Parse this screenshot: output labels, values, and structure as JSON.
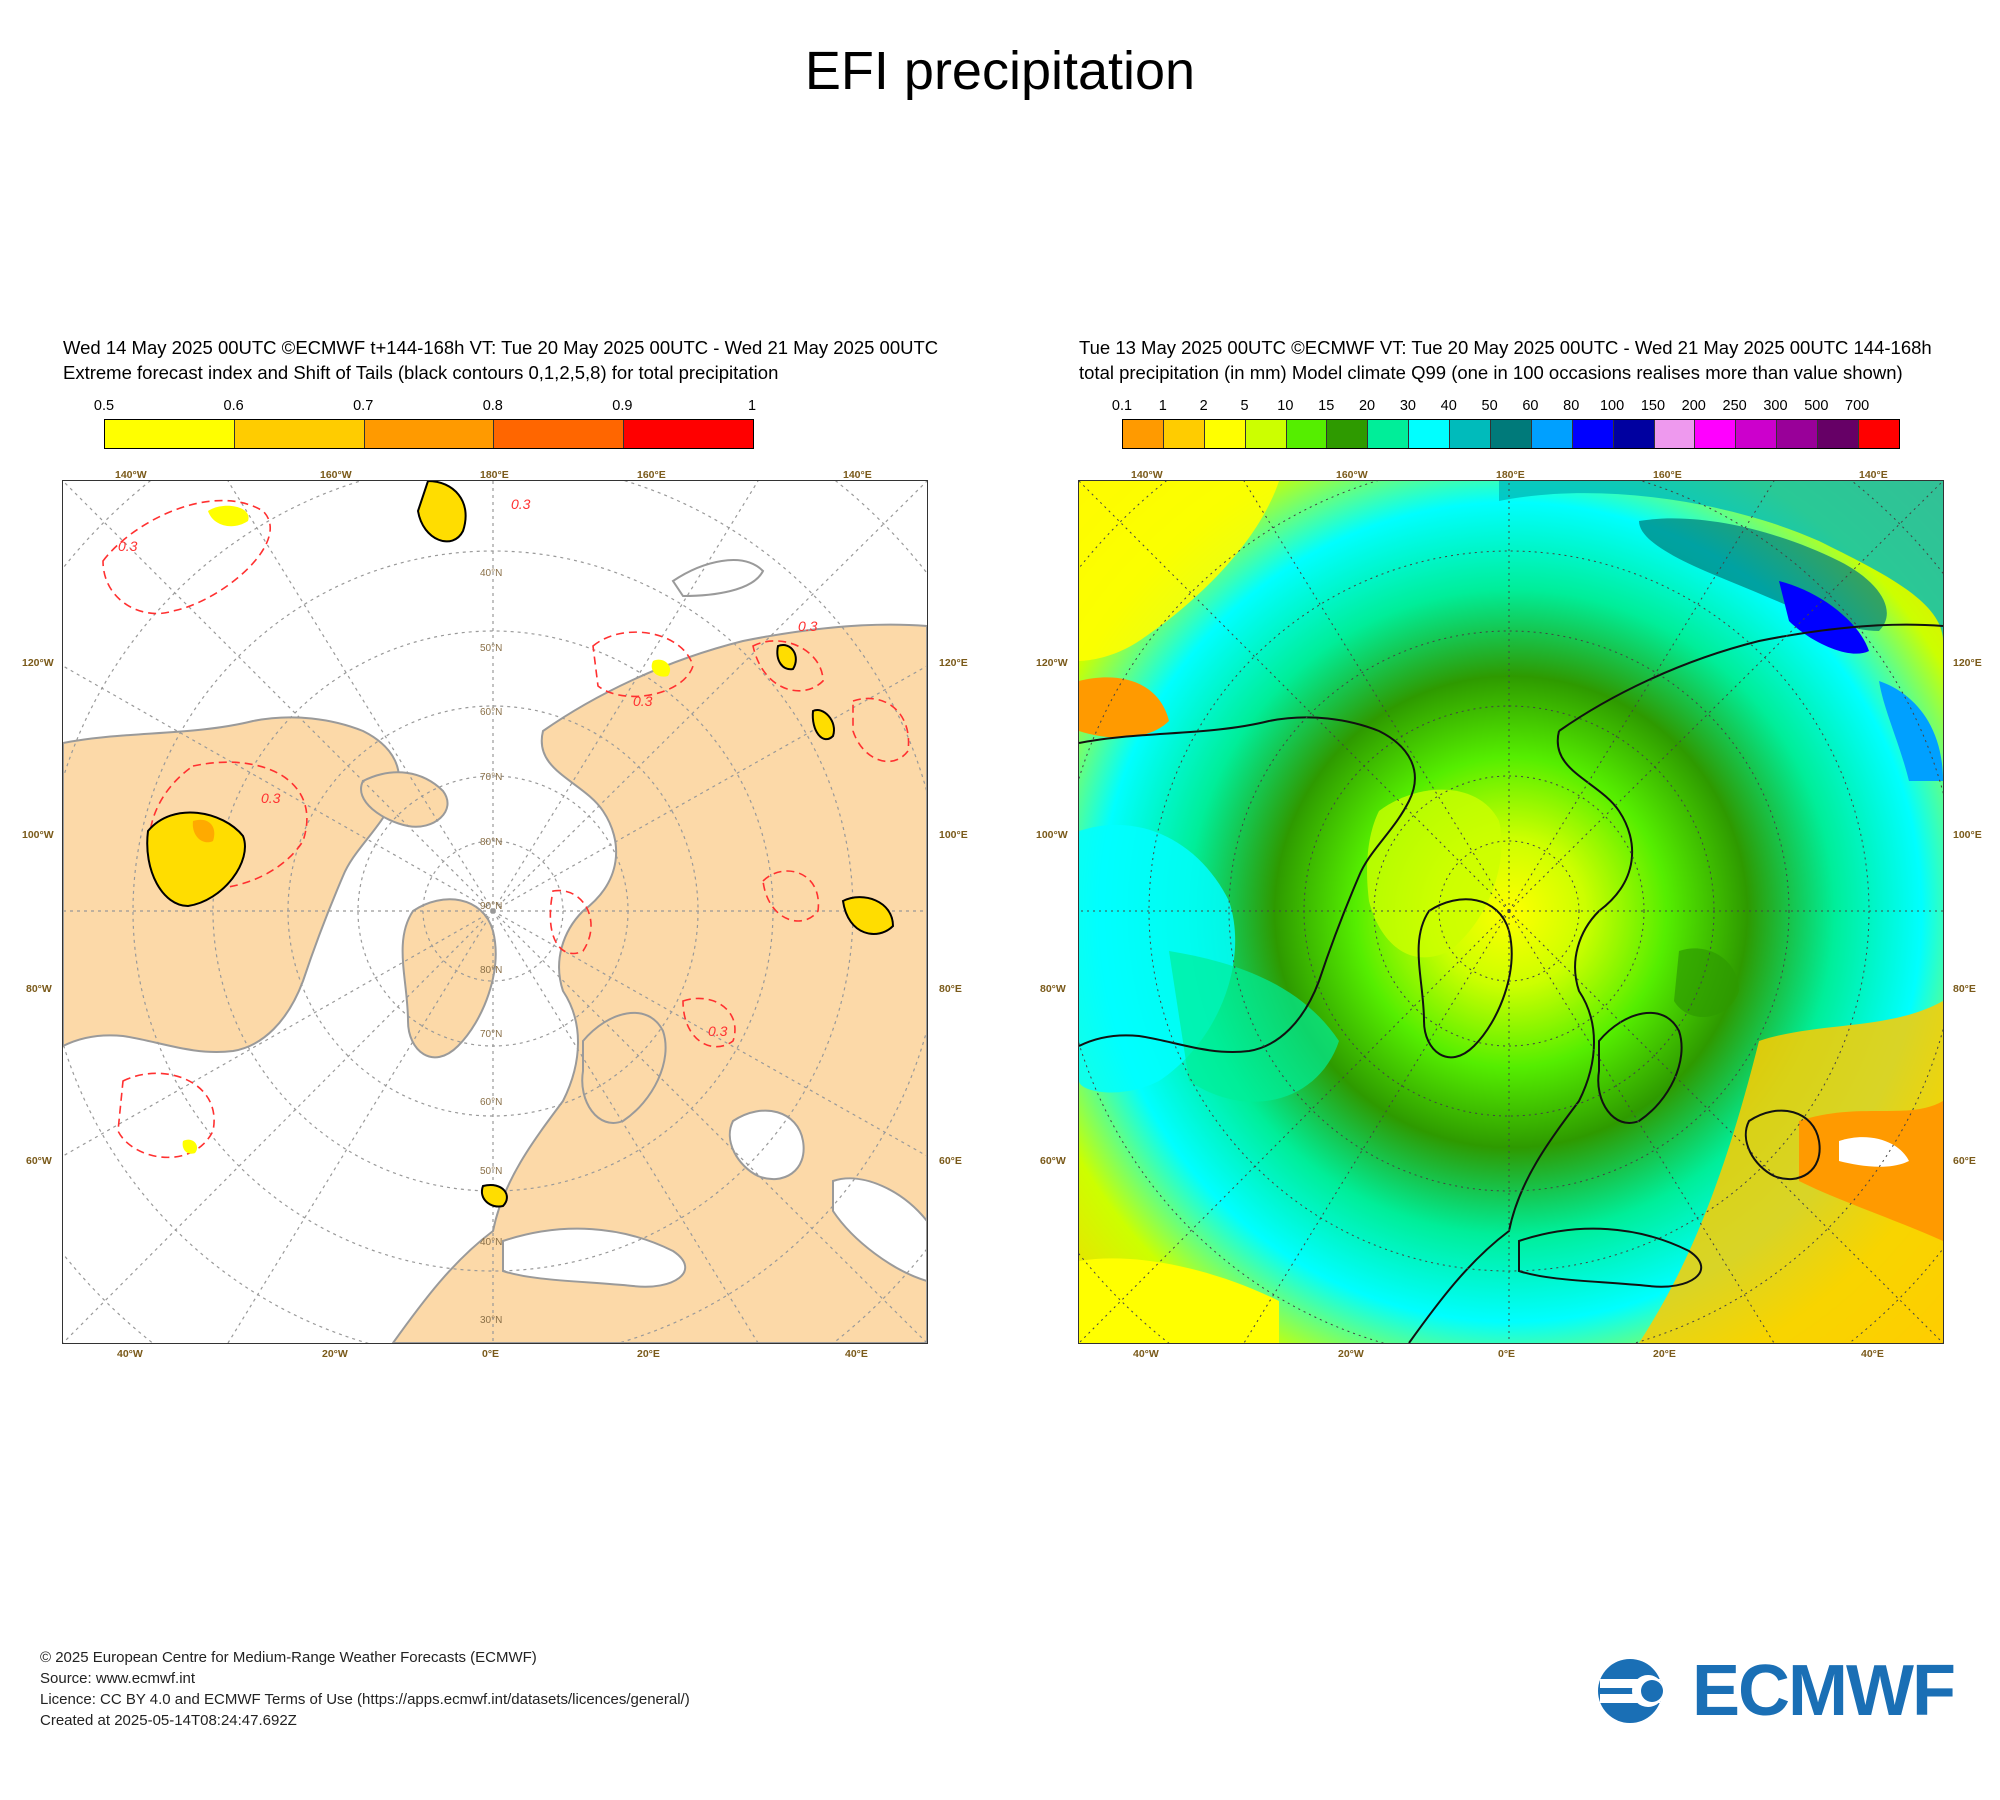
{
  "title": "EFI precipitation",
  "left_panel": {
    "header_line1": "Wed 14 May 2025 00UTC ©ECMWF t+144-168h  VT: Tue 20 May 2025 00UTC - Wed 21 May 2025 00UTC",
    "header_line2": "Extreme forecast index and Shift of Tails (black contours 0,1,2,5,8) for total precipitation",
    "colorbar": {
      "ticks": [
        "0.5",
        "0.6",
        "0.7",
        "0.8",
        "0.9",
        "1"
      ],
      "colors": [
        "#ffff00",
        "#ffcc00",
        "#ff9a00",
        "#ff6600",
        "#ff0000"
      ]
    },
    "contour_labels": [
      "0.3",
      "0.3",
      "0.3",
      "0.3",
      "0.3",
      "0.3"
    ],
    "colors": {
      "land": "#fcd9a8",
      "sea": "#ffffff",
      "coast": "#9a9a9a",
      "efi_contour": "#ff3030",
      "sot_contour": "#000000"
    }
  },
  "right_panel": {
    "header_line1": "Tue 13 May 2025 00UTC ©ECMWF VT: Tue 20 May 2025 00UTC - Wed 21 May 2025 00UTC   144-168h",
    "header_line2": "total precipitation (in mm)  Model climate Q99 (one in 100 occasions realises more than value shown)",
    "colorbar": {
      "ticks": [
        "0.1",
        "1",
        "2",
        "5",
        "10",
        "15",
        "20",
        "30",
        "40",
        "50",
        "60",
        "80",
        "100",
        "150",
        "200",
        "250",
        "300",
        "500",
        "700"
      ],
      "colors": [
        "#ff9a00",
        "#ffcc00",
        "#ffff00",
        "#ccff00",
        "#55ee00",
        "#2e9a00",
        "#00ee99",
        "#00ffff",
        "#00bbbb",
        "#007a7a",
        "#00a0ff",
        "#0000ff",
        "#0000a0",
        "#ee99ee",
        "#ff00ff",
        "#cc00cc",
        "#990099",
        "#660066",
        "#ff0000"
      ]
    }
  },
  "map_labels": {
    "top": [
      "140°W",
      "160°W",
      "180°E",
      "160°E",
      "140°E"
    ],
    "bottom": [
      "40°W",
      "20°W",
      "0°E",
      "20°E",
      "40°E"
    ],
    "left": [
      "120°W",
      "100°W",
      "80°W",
      "60°W"
    ],
    "right": [
      "120°E",
      "100°E",
      "80°E",
      "60°E"
    ],
    "lat_inner": [
      "40°N",
      "50°N",
      "60°N",
      "70°N",
      "80°N",
      "90°N",
      "80°N",
      "70°N",
      "60°N",
      "50°N",
      "40°N",
      "30°N"
    ]
  },
  "footer": {
    "line1": "© 2025 European Centre for Medium-Range Weather Forecasts (ECMWF)",
    "line2": "Source: www.ecmwf.int",
    "line3": "Licence: CC BY 4.0 and ECMWF Terms of Use (https://apps.ecmwf.int/datasets/licences/general/)",
    "line4": "Created at 2025-05-14T08:24:47.692Z"
  },
  "logo_text": "ECMWF",
  "logo_color": "#1a6fb5"
}
